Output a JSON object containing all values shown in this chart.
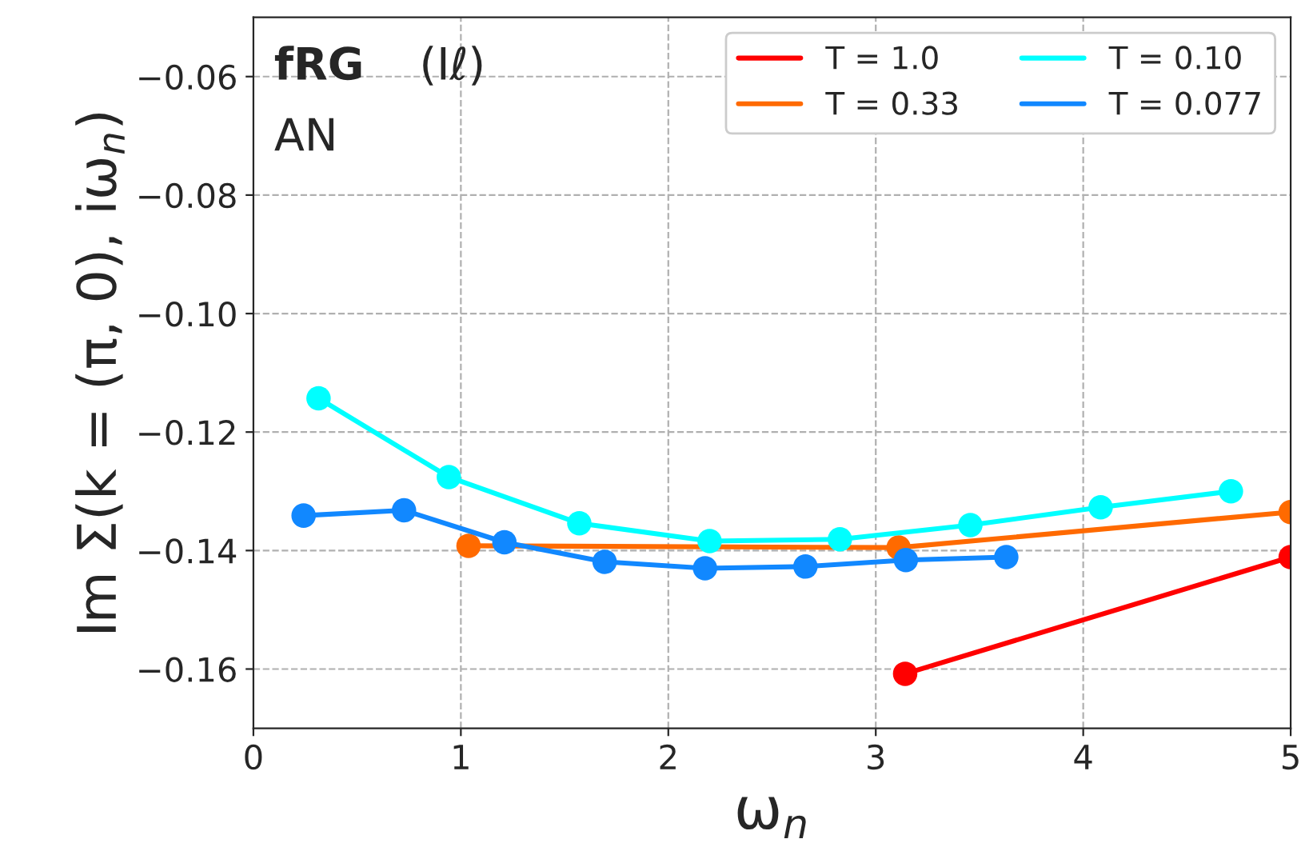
{
  "chart_data": {
    "type": "line",
    "xlabel": "ω$_{n}$",
    "ylabel": "Im Σ(k = (π, 0), iω$_{n}$)",
    "annotations": [
      "fRG",
      "AN",
      "(Iℓ)"
    ],
    "series": [
      {
        "name": "T = 1.0",
        "color": "#ff0000",
        "x": [
          3.1416,
          5.0
        ],
        "values": [
          -0.1608,
          -0.1411
        ]
      },
      {
        "name": "T = 0.33",
        "color": "#ff6a00",
        "x": [
          1.037,
          3.11,
          5.0
        ],
        "values": [
          -0.1392,
          -0.1395,
          -0.1335
        ]
      },
      {
        "name": "T = 0.10",
        "color": "#00ffff",
        "x": [
          0.314,
          0.942,
          1.571,
          2.199,
          2.827,
          3.456,
          4.084,
          4.712
        ],
        "values": [
          -0.1143,
          -0.1276,
          -0.1354,
          -0.1384,
          -0.1381,
          -0.1357,
          -0.1327,
          -0.13
        ]
      },
      {
        "name": "T = 0.077",
        "color": "#1188ff",
        "x": [
          0.242,
          0.726,
          1.21,
          1.693,
          2.177,
          2.661,
          3.145,
          3.629
        ],
        "values": [
          -0.1341,
          -0.1332,
          -0.1386,
          -0.1419,
          -0.143,
          -0.1427,
          -0.1416,
          -0.1411
        ]
      }
    ],
    "xlim": [
      0,
      5
    ],
    "xticks": [
      0,
      1,
      2,
      3,
      4,
      5
    ],
    "ylim": [
      -0.17,
      -0.05
    ],
    "yticks": [
      {
        "value": -0.16,
        "label": "−0.16"
      },
      {
        "value": -0.14,
        "label": "−0.14"
      },
      {
        "value": -0.12,
        "label": "−0.12"
      },
      {
        "value": -0.1,
        "label": "−0.10"
      },
      {
        "value": -0.08,
        "label": "−0.08"
      },
      {
        "value": -0.06,
        "label": "−0.06"
      }
    ],
    "grid": true,
    "legend": "top right",
    "marker": "circle",
    "line_style": "solid"
  }
}
